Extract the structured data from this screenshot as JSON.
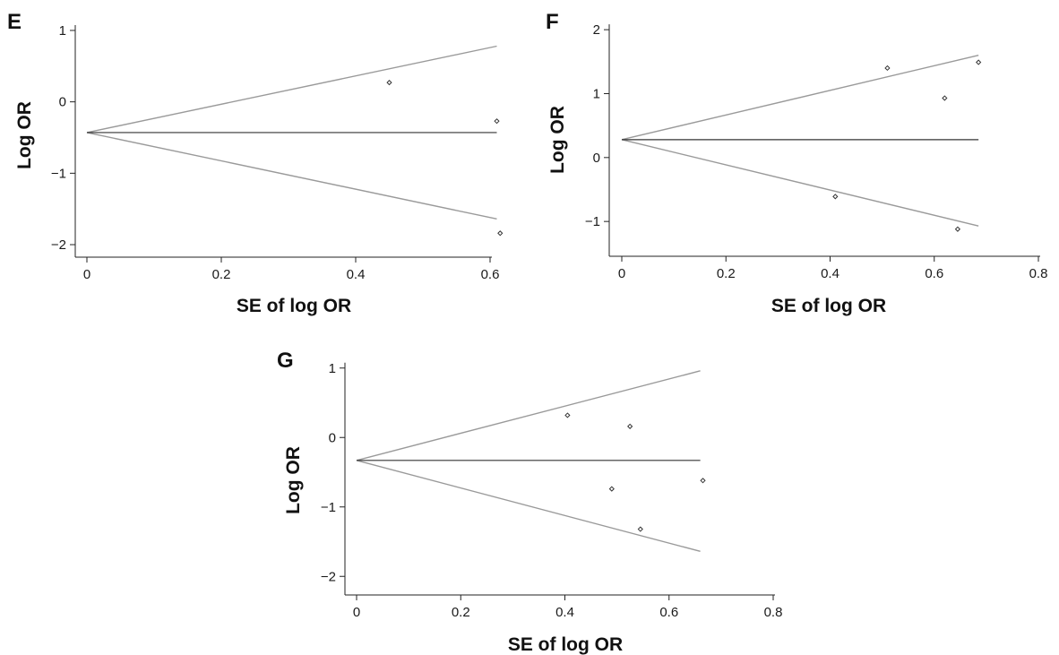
{
  "colors": {
    "background": "#ffffff",
    "axis": "#222222",
    "pseudo_ci_lines": "#9a9a9a",
    "pooled_line": "#333333",
    "points": "#333333"
  },
  "chart_data": [
    {
      "id": "E",
      "type": "scatter",
      "panel_label": "E",
      "xlabel": "SE of log OR",
      "ylabel": "Log OR",
      "xlim": [
        0,
        0.62
      ],
      "ylim": [
        -2.1,
        1.1
      ],
      "xticks": [
        0,
        0.2,
        0.4,
        0.6
      ],
      "xtick_labels": [
        "0",
        "0.2",
        "0.4",
        "0.6"
      ],
      "yticks": [
        -2,
        -1,
        0,
        1
      ],
      "ytick_labels": [
        "−2",
        "−1",
        "0",
        "1"
      ],
      "grid": false,
      "pooled_estimate": -0.43,
      "funnel_x_end": 0.61,
      "funnel_upper_end": 0.78,
      "funnel_lower_end": -1.64,
      "points": [
        {
          "x": 0.45,
          "y": 0.27
        },
        {
          "x": 0.61,
          "y": -0.27
        },
        {
          "x": 0.615,
          "y": -1.84
        }
      ]
    },
    {
      "id": "F",
      "type": "scatter",
      "panel_label": "F",
      "xlabel": "SE of log OR",
      "ylabel": "Log OR",
      "xlim": [
        0,
        0.8
      ],
      "ylim": [
        -1.25,
        2.1
      ],
      "xticks": [
        0,
        0.2,
        0.4,
        0.6,
        0.8
      ],
      "xtick_labels": [
        "0",
        "0.2",
        "0.4",
        "0.6",
        "0.8"
      ],
      "yticks": [
        -1,
        0,
        1,
        2
      ],
      "ytick_labels": [
        "−1",
        "0",
        "1",
        "2"
      ],
      "grid": false,
      "pooled_estimate": 0.28,
      "funnel_x_end": 0.685,
      "funnel_upper_end": 1.6,
      "funnel_lower_end": -1.07,
      "points": [
        {
          "x": 0.51,
          "y": 1.4
        },
        {
          "x": 0.685,
          "y": 1.49
        },
        {
          "x": 0.62,
          "y": 0.93
        },
        {
          "x": 0.41,
          "y": -0.61
        },
        {
          "x": 0.645,
          "y": -1.12
        }
      ]
    },
    {
      "id": "G",
      "type": "scatter",
      "panel_label": "G",
      "xlabel": "SE of log OR",
      "ylabel": "Log OR",
      "xlim": [
        0,
        0.8
      ],
      "ylim": [
        -2.1,
        1.1
      ],
      "xticks": [
        0,
        0.2,
        0.4,
        0.6,
        0.8
      ],
      "xtick_labels": [
        "0",
        "0.2",
        "0.4",
        "0.6",
        "0.8"
      ],
      "yticks": [
        -2,
        -1,
        0,
        1
      ],
      "ytick_labels": [
        "−2",
        "−1",
        "0",
        "1"
      ],
      "grid": false,
      "pooled_estimate": -0.33,
      "funnel_x_end": 0.66,
      "funnel_upper_end": 0.96,
      "funnel_lower_end": -1.64,
      "points": [
        {
          "x": 0.405,
          "y": 0.32
        },
        {
          "x": 0.525,
          "y": 0.16
        },
        {
          "x": 0.49,
          "y": -0.74
        },
        {
          "x": 0.665,
          "y": -0.62
        },
        {
          "x": 0.545,
          "y": -1.32
        }
      ]
    }
  ]
}
